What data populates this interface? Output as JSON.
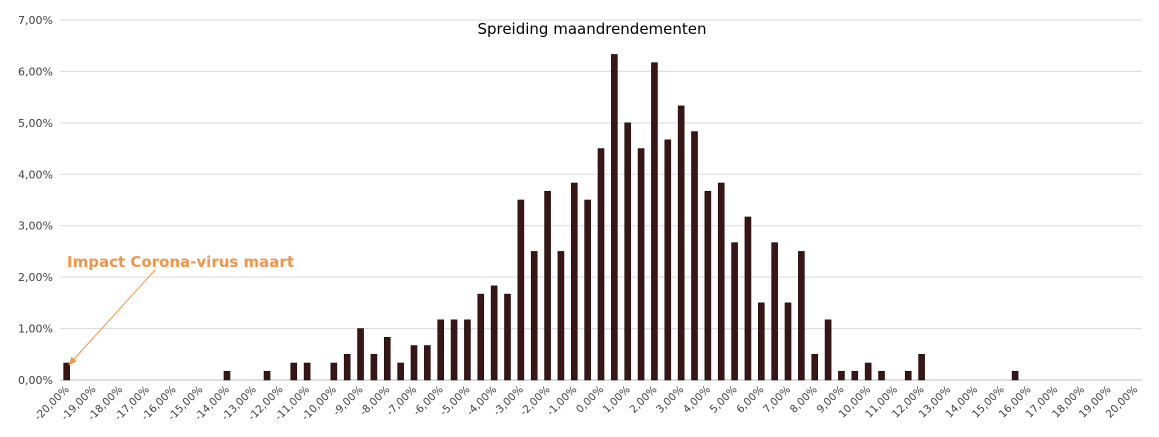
{
  "chart_data": {
    "type": "bar",
    "title": "Spreiding maandrendementen",
    "xlabel": "",
    "ylabel": "",
    "ylim": [
      0,
      7
    ],
    "grid": true,
    "legend": "none",
    "yticks": [
      "0,00%",
      "1,00%",
      "2,00%",
      "3,00%",
      "4,00%",
      "5,00%",
      "6,00%",
      "7,00%"
    ],
    "xticks": [
      "-20,00%",
      "-19,00%",
      "-18,00%",
      "-17,00%",
      "-16,00%",
      "-15,00%",
      "-14,00%",
      "-13,00%",
      "-12,00%",
      "-11,00%",
      "-10,00%",
      "-9,00%",
      "-8,00%",
      "-7,00%",
      "-6,00%",
      "-5,00%",
      "-4,00%",
      "-3,00%",
      "-2,00%",
      "-1,00%",
      "0,00%",
      "1,00%",
      "2,00%",
      "3,00%",
      "4,00%",
      "5,00%",
      "6,00%",
      "7,00%",
      "8,00%",
      "9,00%",
      "10,00%",
      "11,00%",
      "12,00%",
      "13,00%",
      "14,00%",
      "15,00%",
      "16,00%",
      "17,00%",
      "18,00%",
      "19,00%",
      "20,00%"
    ],
    "x_range": [
      -20,
      20
    ],
    "bin_width": 0.5,
    "bars": [
      {
        "x": -20.0,
        "y": 0.33
      },
      {
        "x": -14.0,
        "y": 0.17
      },
      {
        "x": -12.5,
        "y": 0.17
      },
      {
        "x": -11.5,
        "y": 0.33
      },
      {
        "x": -11.0,
        "y": 0.33
      },
      {
        "x": -10.0,
        "y": 0.33
      },
      {
        "x": -9.5,
        "y": 0.5
      },
      {
        "x": -9.0,
        "y": 1.0
      },
      {
        "x": -8.5,
        "y": 0.5
      },
      {
        "x": -8.0,
        "y": 0.83
      },
      {
        "x": -7.5,
        "y": 0.33
      },
      {
        "x": -7.0,
        "y": 0.67
      },
      {
        "x": -6.5,
        "y": 0.67
      },
      {
        "x": -6.0,
        "y": 1.17
      },
      {
        "x": -5.5,
        "y": 1.17
      },
      {
        "x": -5.0,
        "y": 1.17
      },
      {
        "x": -4.5,
        "y": 1.67
      },
      {
        "x": -4.0,
        "y": 1.83
      },
      {
        "x": -3.5,
        "y": 1.67
      },
      {
        "x": -3.0,
        "y": 3.5
      },
      {
        "x": -2.5,
        "y": 2.5
      },
      {
        "x": -2.0,
        "y": 3.67
      },
      {
        "x": -1.5,
        "y": 2.5
      },
      {
        "x": -1.0,
        "y": 3.83
      },
      {
        "x": -0.5,
        "y": 3.5
      },
      {
        "x": 0.0,
        "y": 4.5
      },
      {
        "x": 0.5,
        "y": 6.33
      },
      {
        "x": 1.0,
        "y": 5.0
      },
      {
        "x": 1.5,
        "y": 4.5
      },
      {
        "x": 2.0,
        "y": 6.17
      },
      {
        "x": 2.5,
        "y": 4.67
      },
      {
        "x": 3.0,
        "y": 5.33
      },
      {
        "x": 3.5,
        "y": 4.83
      },
      {
        "x": 4.0,
        "y": 3.67
      },
      {
        "x": 4.5,
        "y": 3.83
      },
      {
        "x": 5.0,
        "y": 2.67
      },
      {
        "x": 5.5,
        "y": 3.17
      },
      {
        "x": 6.0,
        "y": 1.5
      },
      {
        "x": 6.5,
        "y": 2.67
      },
      {
        "x": 7.0,
        "y": 1.5
      },
      {
        "x": 7.5,
        "y": 2.5
      },
      {
        "x": 8.0,
        "y": 0.5
      },
      {
        "x": 8.5,
        "y": 1.17
      },
      {
        "x": 9.0,
        "y": 0.17
      },
      {
        "x": 9.5,
        "y": 0.17
      },
      {
        "x": 10.0,
        "y": 0.33
      },
      {
        "x": 10.5,
        "y": 0.17
      },
      {
        "x": 11.5,
        "y": 0.17
      },
      {
        "x": 12.0,
        "y": 0.5
      },
      {
        "x": 15.5,
        "y": 0.17
      }
    ],
    "bar_color": "#3a1515",
    "annotations": [
      {
        "text": "Impact Corona-virus maart",
        "color": "#f0954a",
        "points_to_x": -20.0
      }
    ]
  }
}
